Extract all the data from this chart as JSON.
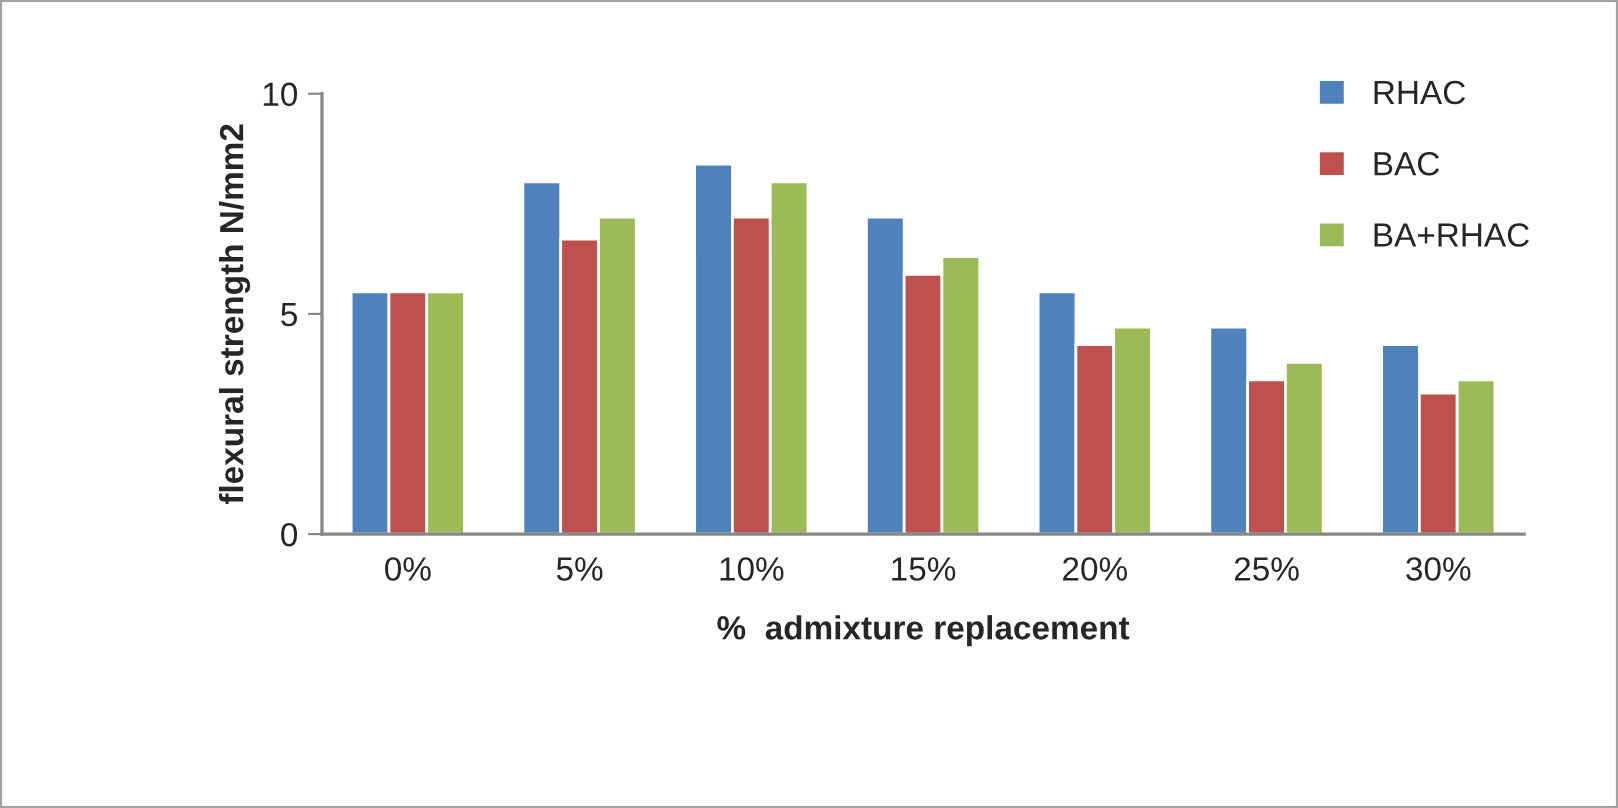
{
  "chart_data": {
    "type": "bar",
    "xlabel": "%  admixture replacement",
    "ylabel": "flexural strength N/mm2",
    "categories": [
      "0%",
      "5%",
      "10%",
      "15%",
      "20%",
      "25%",
      "30%"
    ],
    "series": [
      {
        "name": "RHAC",
        "color": "#4f81bd",
        "values": [
          5.5,
          8.0,
          8.4,
          7.2,
          5.5,
          4.7,
          4.3
        ]
      },
      {
        "name": "BAC",
        "color": "#c0504d",
        "values": [
          5.5,
          6.7,
          7.2,
          5.9,
          4.3,
          3.5,
          3.2
        ]
      },
      {
        "name": "BA+RHAC",
        "color": "#9bbb59",
        "values": [
          5.5,
          7.2,
          8.0,
          6.3,
          4.7,
          3.9,
          3.5
        ]
      }
    ],
    "ylim": [
      0,
      10
    ],
    "yticks": [
      0,
      5,
      10
    ],
    "grid": false,
    "legend": "top right"
  }
}
